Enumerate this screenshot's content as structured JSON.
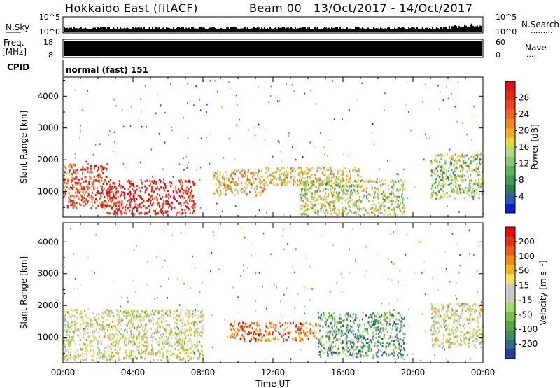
{
  "header": {
    "station": "Hokkaido East (fitACF)",
    "beam": "Beam 00",
    "dates": "13/Oct/2017 - 14/Oct/2017"
  },
  "strips": {
    "nsky_label": "N.Sky",
    "nsky_tick_top": "10^5",
    "nsky_tick_bottom": "10^0",
    "nsearch_label": "N.Search",
    "nsearch_tick_top": "10^5",
    "nsearch_tick_bottom": "10^0",
    "freq_label": "Freq.",
    "freq_unit": "[MHz]",
    "freq_tick_top": "18",
    "freq_tick_bottom": "8",
    "nave_label": "Nave",
    "nave_tick_top": "60",
    "nave_tick_bottom": "0",
    "cpid_label": "CPID",
    "cpid_value": "normal (fast) 151"
  },
  "chart_data": [
    {
      "type": "heatmap",
      "name": "power",
      "ylabel": "Slant Range [km]",
      "yticks": [
        "1000",
        "2000",
        "3000",
        "4000"
      ],
      "ylim": [
        200,
        4600
      ],
      "xlim": [
        0,
        24
      ],
      "colorbar": {
        "label": "Power [dB]",
        "ticks": [
          "4",
          "8",
          "12",
          "16",
          "20",
          "24",
          "28"
        ],
        "range": [
          0,
          32
        ],
        "colors": [
          "#0a1cd8",
          "#2c58b4",
          "#2f7a55",
          "#3f9a52",
          "#58b35c",
          "#8cc873",
          "#b7d57c",
          "#e3d63f",
          "#f2ac22",
          "#ef8722",
          "#ec6422",
          "#e84521",
          "#e32620",
          "#de0f16"
        ]
      },
      "bands": [
        {
          "x0": 0.0,
          "x1": 2.5,
          "y0": 500,
          "y1": 1900,
          "level": 0.85
        },
        {
          "x0": 2.5,
          "x1": 7.5,
          "y0": 300,
          "y1": 1400,
          "level": 0.95
        },
        {
          "x0": 8.5,
          "x1": 11.5,
          "y0": 900,
          "y1": 1700,
          "level": 0.6
        },
        {
          "x0": 11.5,
          "x1": 17.0,
          "y0": 1200,
          "y1": 1800,
          "level": 0.55
        },
        {
          "x0": 13.5,
          "x1": 19.5,
          "y0": 300,
          "y1": 1400,
          "level": 0.45
        },
        {
          "x0": 21.0,
          "x1": 24.0,
          "y0": 800,
          "y1": 2200,
          "level": 0.4
        }
      ]
    },
    {
      "type": "heatmap",
      "name": "velocity",
      "xlabel": "Time UT",
      "xticks": [
        "00:00",
        "04:00",
        "08:00",
        "12:00",
        "16:00",
        "20:00",
        "00:00"
      ],
      "ylabel": "Slant Range [km]",
      "yticks": [
        "1000",
        "2000",
        "3000",
        "4000"
      ],
      "ylim": [
        200,
        4600
      ],
      "xlim": [
        0,
        24
      ],
      "colorbar": {
        "label": "Velocity [m s⁻¹]",
        "ticks": [
          "200",
          "100",
          "50",
          "15",
          "-15",
          "-50",
          "-100",
          "-200"
        ],
        "range": [
          -250,
          250
        ],
        "colors": [
          "#2b3c9c",
          "#2b6b8f",
          "#3f8c58",
          "#4ea642",
          "#78c244",
          "#a8d76f",
          "#c8c8c8",
          "#c8c8c8",
          "#f7e05a",
          "#f5b320",
          "#f08a1e",
          "#eb5d1d",
          "#e5301b",
          "#dc0c12"
        ]
      },
      "bands": [
        {
          "x0": 0.0,
          "x1": 8.0,
          "y0": 300,
          "y1": 1900,
          "level": 0.5
        },
        {
          "x0": 9.5,
          "x1": 14.5,
          "y0": 900,
          "y1": 1500,
          "level": 0.8
        },
        {
          "x0": 14.5,
          "x1": 19.5,
          "y0": 400,
          "y1": 1800,
          "level": 0.25
        },
        {
          "x0": 21.0,
          "x1": 24.0,
          "y0": 700,
          "y1": 2100,
          "level": 0.5
        }
      ]
    }
  ]
}
